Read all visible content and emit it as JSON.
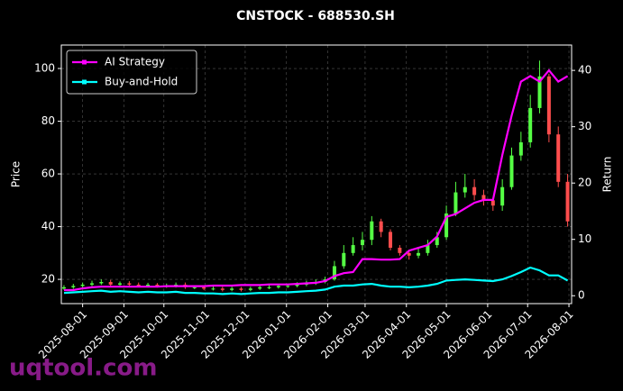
{
  "chart_data": {
    "type": "candlestick",
    "title": "CNSTOCK - 688530.SH",
    "ylabel": "Price",
    "y2label": "Return",
    "watermark": "uqtool.com",
    "x": [
      "2025-07-18",
      "2025-07-25",
      "2025-08-01",
      "2025-08-08",
      "2025-08-15",
      "2025-08-22",
      "2025-08-29",
      "2025-09-05",
      "2025-09-12",
      "2025-09-19",
      "2025-09-26",
      "2025-10-03",
      "2025-10-10",
      "2025-10-17",
      "2025-10-24",
      "2025-10-31",
      "2025-11-07",
      "2025-11-14",
      "2025-11-21",
      "2025-11-28",
      "2025-12-05",
      "2025-12-12",
      "2025-12-19",
      "2025-12-26",
      "2026-01-02",
      "2026-01-09",
      "2026-01-16",
      "2026-01-23",
      "2026-01-30",
      "2026-02-06",
      "2026-02-13",
      "2026-02-20",
      "2026-02-27",
      "2026-03-06",
      "2026-03-13",
      "2026-03-20",
      "2026-03-27",
      "2026-04-03",
      "2026-04-10",
      "2026-04-17",
      "2026-04-24",
      "2026-05-01",
      "2026-05-08",
      "2026-05-15",
      "2026-05-22",
      "2026-05-29",
      "2026-06-05",
      "2026-06-12",
      "2026-06-19",
      "2026-06-26",
      "2026-07-03",
      "2026-07-10",
      "2026-07-17",
      "2026-07-24",
      "2026-07-31"
    ],
    "open": [
      16.5,
      17,
      17.5,
      18,
      18.5,
      19,
      18,
      18.5,
      18,
      17.5,
      18,
      17.5,
      17.5,
      18,
      17,
      17,
      16.5,
      16.5,
      16,
      16.5,
      16,
      16.5,
      17,
      17,
      17.5,
      17.5,
      18,
      18.5,
      19,
      20,
      25,
      30,
      33,
      35,
      42,
      38,
      32,
      30,
      29,
      30,
      33,
      36,
      45,
      53,
      55,
      52,
      50,
      48,
      55,
      67,
      72,
      85,
      97,
      75,
      57
    ],
    "high": [
      17.8,
      18.3,
      18.8,
      19.5,
      20,
      19.8,
      19.2,
      19.3,
      18.8,
      18.7,
      18.6,
      18.4,
      18.8,
      18.8,
      17.8,
      17.7,
      17.3,
      17.2,
      17.2,
      17.1,
      17.2,
      17.8,
      17.9,
      18.3,
      18.4,
      18.9,
      19.5,
      20,
      21,
      27,
      33,
      36,
      38,
      44,
      43,
      39,
      33,
      31,
      32,
      35,
      38,
      48,
      57,
      60,
      58,
      54,
      51,
      58,
      70,
      76,
      90,
      103,
      98,
      78,
      60
    ],
    "low": [
      16,
      16.4,
      16.9,
      17.4,
      17.9,
      17.4,
      17.4,
      17.3,
      17,
      16.9,
      16.9,
      16.8,
      16.9,
      16.4,
      16.3,
      15.9,
      15.8,
      15.4,
      15.5,
      15.4,
      15.5,
      16,
      16.3,
      16.5,
      16.8,
      17,
      17.4,
      17.9,
      18.5,
      19.5,
      24,
      29,
      31,
      33,
      36,
      31,
      29,
      27.5,
      28,
      29,
      32,
      35,
      44,
      51,
      50,
      48,
      46,
      46,
      54,
      65,
      70,
      83,
      72,
      55,
      40
    ],
    "close": [
      17,
      17.5,
      18,
      18.5,
      19,
      18,
      18.5,
      18,
      17.5,
      18,
      17.5,
      17.5,
      18,
      17,
      17,
      16.5,
      16.5,
      16,
      16.5,
      16,
      16.5,
      17,
      17,
      17.5,
      17.5,
      18,
      18.5,
      19,
      20,
      25,
      30,
      33,
      35,
      42,
      38,
      32,
      30,
      29,
      30,
      33,
      36,
      45,
      53,
      55,
      52,
      50,
      48,
      55,
      67,
      72,
      85,
      97,
      75,
      57,
      42
    ],
    "up_color": "#55ff44",
    "down_color": "#ff4d4d",
    "series": [
      {
        "name": "AI Strategy",
        "color": "#ff00ff",
        "axis": "y2",
        "values": [
          1,
          1,
          1.3,
          1.5,
          1.6,
          1.6,
          1.6,
          1.6,
          1.6,
          1.6,
          1.6,
          1.7,
          1.7,
          1.7,
          1.7,
          1.7,
          1.8,
          1.8,
          1.8,
          1.9,
          1.9,
          1.9,
          2,
          2,
          2,
          2.1,
          2.2,
          2.3,
          2.6,
          3.5,
          4,
          4.2,
          6.5,
          6.5,
          6.4,
          6.4,
          6.5,
          8,
          8.5,
          9,
          10.5,
          14,
          14.5,
          15.5,
          16.5,
          17,
          17,
          25,
          32,
          38,
          39,
          38,
          40,
          38,
          39
        ]
      },
      {
        "name": "Buy-and-Hold",
        "color": "#00ffff",
        "axis": "y2",
        "values": [
          0.5,
          0.6,
          0.7,
          0.8,
          0.9,
          0.7,
          0.8,
          0.7,
          0.6,
          0.7,
          0.6,
          0.6,
          0.7,
          0.5,
          0.5,
          0.4,
          0.4,
          0.3,
          0.4,
          0.3,
          0.4,
          0.5,
          0.5,
          0.6,
          0.6,
          0.7,
          0.8,
          0.9,
          1.1,
          1.6,
          1.8,
          1.8,
          2.0,
          2.1,
          1.8,
          1.6,
          1.6,
          1.5,
          1.6,
          1.8,
          2.1,
          2.7,
          2.8,
          2.9,
          2.8,
          2.7,
          2.6,
          2.9,
          3.5,
          4.2,
          5.0,
          4.5,
          3.6,
          3.6,
          2.7
        ]
      }
    ],
    "xlim": [
      "2025-07-16",
      "2026-08-03"
    ],
    "xticks": [
      "2025-08-01",
      "2025-09-01",
      "2025-10-01",
      "2025-11-01",
      "2025-12-01",
      "2026-01-01",
      "2026-02-01",
      "2026-03-01",
      "2026-04-01",
      "2026-05-01",
      "2026-06-01",
      "2026-07-01",
      "2026-08-01"
    ],
    "ylim": [
      10.8,
      108.9
    ],
    "yticks": [
      20,
      40,
      60,
      80,
      100
    ],
    "y2lim": [
      -1.4,
      44.5
    ],
    "y2ticks": [
      0,
      10,
      20,
      30,
      40
    ],
    "grid": true,
    "legend": "upper left"
  }
}
